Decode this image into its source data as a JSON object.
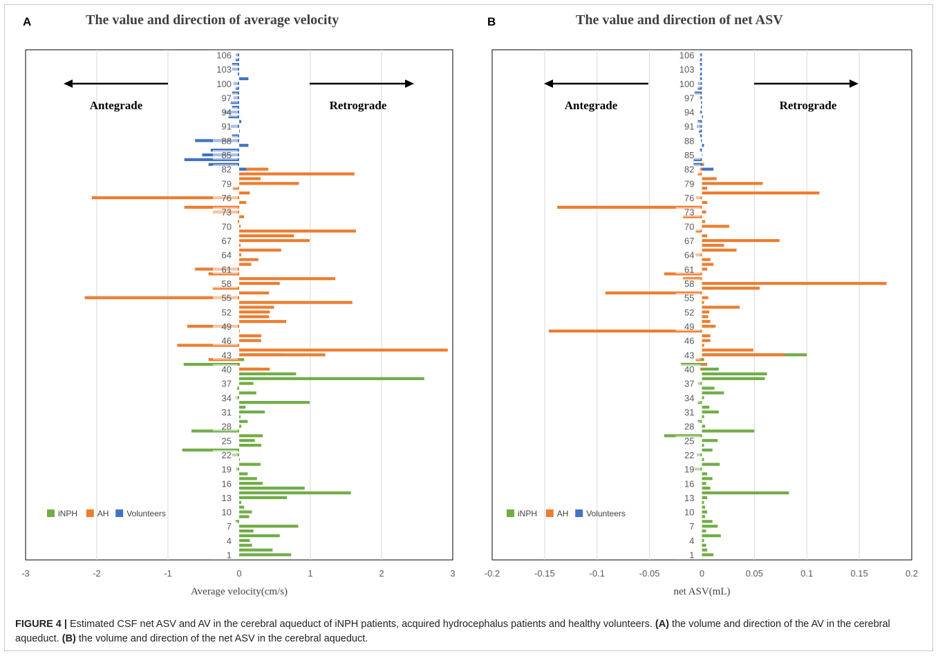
{
  "colors": {
    "iNPH": "#70ad47",
    "AH": "#ed7d31",
    "Volunteers": "#4472c4"
  },
  "caption": {
    "label": "FIGURE 4 |",
    "parts": [
      {
        "text": " Estimated CSF net ASV and AV in the cerebral aqueduct of iNPH patients, acquired hydrocephalus patients and healthy volunteers. ",
        "bold": false
      },
      {
        "text": "(A)",
        "bold": true
      },
      {
        "text": " the volume and direction of the AV in the cerebral aqueduct. ",
        "bold": false
      },
      {
        "text": "(B)",
        "bold": true
      },
      {
        "text": " the volume and direction of the net ASV in the cerebral aqueduct.",
        "bold": false
      }
    ]
  },
  "chart_data": [
    {
      "panel": "A",
      "type": "bar",
      "orientation": "horizontal",
      "title": "The value and direction of average velocity",
      "xlabel": "Average velocity(cm/s)",
      "xlim": [
        -3,
        3
      ],
      "xticks": [
        "-3",
        "-2",
        "-1",
        "0",
        "1",
        "2",
        "3"
      ],
      "yticks": [
        "1",
        "4",
        "7",
        "10",
        "13",
        "16",
        "19",
        "22",
        "25",
        "28",
        "31",
        "34",
        "37",
        "40",
        "43",
        "46",
        "49",
        "52",
        "55",
        "58",
        "61",
        "64",
        "67",
        "70",
        "73",
        "76",
        "79",
        "82",
        "85",
        "88",
        "91",
        "94",
        "97",
        "100",
        "103",
        "106"
      ],
      "annotations": {
        "left": "Antegrade",
        "right": "Retrograde"
      },
      "legend": {
        "position": "bottom-left",
        "entries": [
          "iNPH",
          "AH",
          "Volunteers"
        ]
      },
      "series": [
        {
          "name": "iNPH",
          "start": 1,
          "values": [
            0.73,
            0.47,
            0.18,
            0.15,
            0.57,
            0.2,
            0.83,
            -0.05,
            0.14,
            0.18,
            0.07,
            0.03,
            0.67,
            1.57,
            0.92,
            0.33,
            0.25,
            0.12,
            -0.05,
            0.3,
            0.01,
            -0.1,
            -0.8,
            0.31,
            0.22,
            0.33,
            -0.67,
            0.03,
            0.12,
            0.02,
            0.36,
            0.09,
            0.99,
            -0.05,
            0.24,
            -0.03,
            0.2,
            2.6,
            0.8,
            0.28,
            -0.78,
            0.07,
            0.62
          ]
        },
        {
          "name": "AH",
          "start": 40,
          "values": [
            0.43,
            0.01,
            -0.43,
            1.21,
            2.93,
            -0.87,
            0.31,
            0.31,
            0.01,
            -0.73,
            0.66,
            0.42,
            0.43,
            0.49,
            1.59,
            -2.17,
            0.42,
            -0.37,
            0.57,
            1.35,
            -0.43,
            -0.62,
            0.17,
            0.27,
            0.03,
            0.59,
            0.02,
            0.99,
            0.77,
            1.64,
            0.02,
            -0.02,
            0.07,
            -0.37,
            -0.77,
            0.1,
            -2.07,
            0.15,
            -0.09,
            0.84,
            0.3,
            1.62,
            0.41,
            -0.28
          ]
        },
        {
          "name": "Volunteers",
          "start": 82,
          "values": [
            0.1,
            -0.43,
            -0.77,
            -0.52,
            -0.4,
            0.13,
            -0.62,
            -0.1,
            0.01,
            -0.12,
            0.03,
            -0.15,
            -0.22,
            -0.1,
            -0.12,
            -0.08,
            -0.1,
            -0.05,
            -0.08,
            0.13,
            -0.02,
            -0.1,
            -0.1,
            -0.05,
            -0.05,
            -0.05,
            -0.1
          ]
        }
      ]
    },
    {
      "panel": "B",
      "type": "bar",
      "orientation": "horizontal",
      "title": "The value and direction of net ASV",
      "xlabel": "net ASV(mL)",
      "xlim": [
        -0.2,
        0.2
      ],
      "xticks": [
        "-0.2",
        "-0.15",
        "-0.1",
        "-0.05",
        "0",
        "0.05",
        "0.1",
        "0.15",
        "0.2"
      ],
      "yticks": [
        "1",
        "4",
        "7",
        "10",
        "13",
        "16",
        "19",
        "22",
        "25",
        "28",
        "31",
        "34",
        "37",
        "40",
        "43",
        "46",
        "49",
        "52",
        "55",
        "58",
        "61",
        "64",
        "67",
        "70",
        "73",
        "76",
        "79",
        "82",
        "85",
        "88",
        "91",
        "94",
        "97",
        "100",
        "103",
        "106"
      ],
      "annotations": {
        "left": "Antegrade",
        "right": "Retrograde"
      },
      "legend": {
        "position": "bottom-left",
        "entries": [
          "iNPH",
          "AH",
          "Volunteers"
        ]
      },
      "series": [
        {
          "name": "iNPH",
          "start": 1,
          "values": [
            0.011,
            0.005,
            0.004,
            0.002,
            0.018,
            0.004,
            0.015,
            0.01,
            0.003,
            0.005,
            0.003,
            0.002,
            0.005,
            0.083,
            0.008,
            0.004,
            0.01,
            0.005,
            -0.007,
            0.017,
            0.002,
            -0.005,
            0.01,
            0.002,
            0.015,
            -0.036,
            0.05,
            0.003,
            -0.004,
            0.002,
            0.016,
            0.007,
            -0.004,
            0.002,
            0.021,
            0.012,
            -0.004,
            0.06,
            0.062,
            0.016,
            -0.02,
            0.002,
            0.1
          ]
        },
        {
          "name": "AH",
          "start": 40,
          "values": [
            -0.002,
            0.005,
            -0.006,
            0.079,
            0.049,
            0.002,
            0.008,
            0.008,
            -0.146,
            0.013,
            0.008,
            0.006,
            0.007,
            0.036,
            0.002,
            0.006,
            -0.092,
            0.055,
            0.176,
            -0.018,
            -0.036,
            0.005,
            0.011,
            0.008,
            -0.006,
            0.033,
            0.021,
            0.074,
            0.005,
            -0.006,
            0.026,
            0.003,
            -0.018,
            0.004,
            -0.138,
            0.005,
            -0.006,
            0.112,
            0.005,
            0.058,
            0.014,
            -0.004,
            -0.002,
            0.002
          ]
        },
        {
          "name": "Volunteers",
          "start": 82,
          "values": [
            0.011,
            -0.008,
            -0.008,
            0.0,
            -0.002,
            0.002,
            -0.001,
            -0.002,
            -0.003,
            -0.005,
            -0.004,
            0.001,
            -0.002,
            -0.001,
            -0.001,
            -0.002,
            -0.007,
            -0.004,
            -0.004,
            -0.002,
            -0.002,
            -0.002,
            -0.002,
            -0.002,
            -0.002,
            -0.002,
            -0.002
          ]
        }
      ]
    }
  ]
}
